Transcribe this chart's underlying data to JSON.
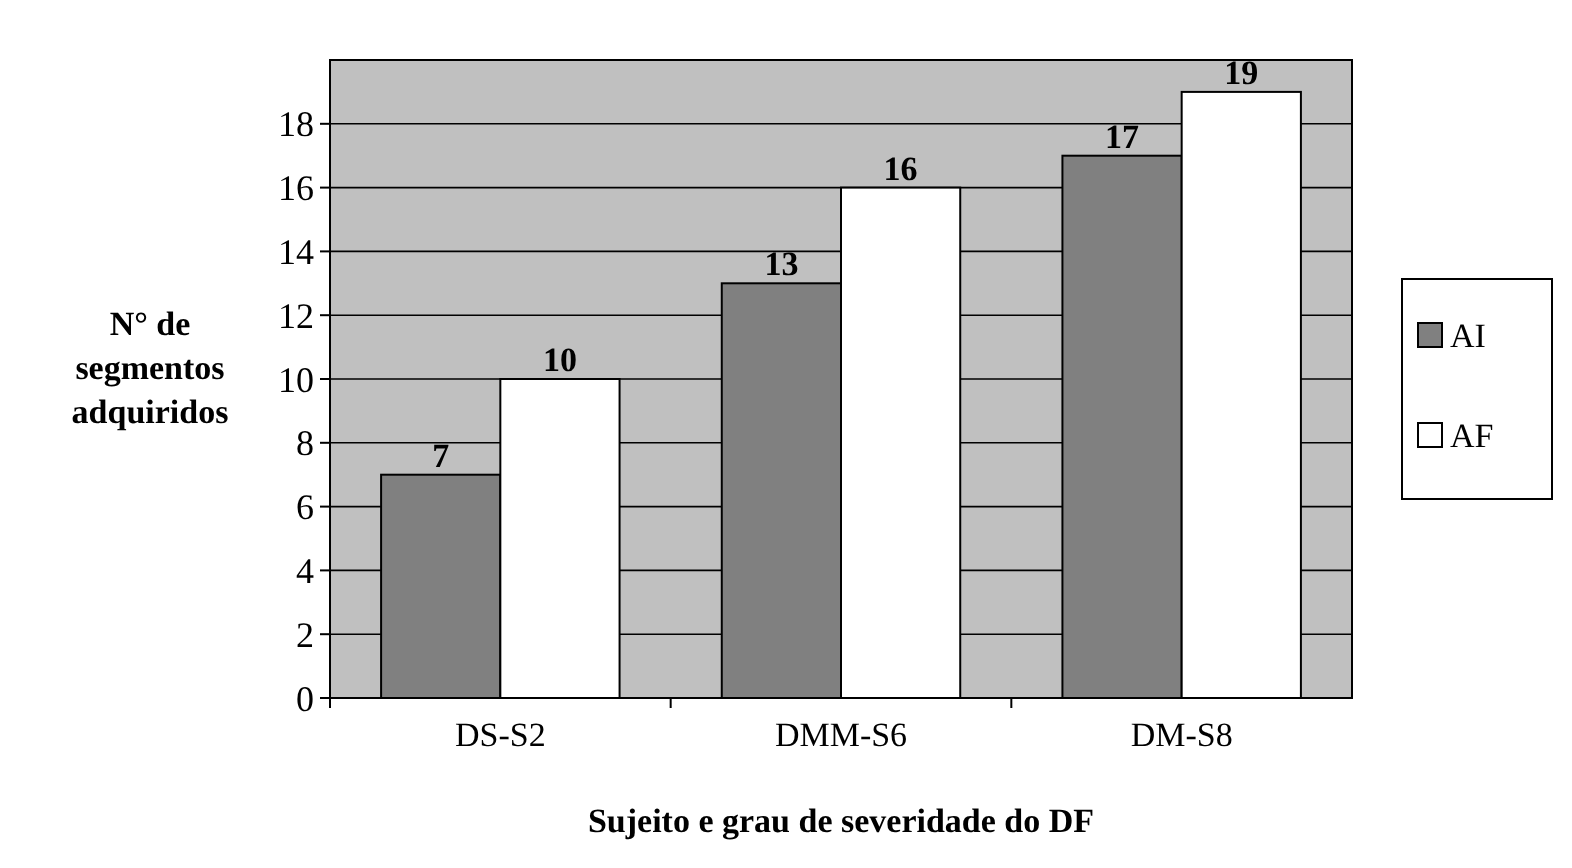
{
  "chart_data": {
    "type": "bar",
    "xlabel": "Sujeito e grau de severidade do DF",
    "ylabel": "N° de segmentos adquiridos",
    "categories": [
      "DS-S2",
      "DMM-S6",
      "DM-S8"
    ],
    "series": [
      {
        "name": "AI",
        "color": "#808080",
        "values": [
          7,
          13,
          17
        ]
      },
      {
        "name": "AF",
        "color": "#ffffff",
        "values": [
          10,
          16,
          19
        ]
      }
    ],
    "ylim": [
      0,
      20
    ],
    "yticks": [
      0,
      2,
      4,
      6,
      8,
      10,
      12,
      14,
      16,
      18
    ],
    "grid": "y",
    "legend": "right",
    "data_labels": true
  }
}
